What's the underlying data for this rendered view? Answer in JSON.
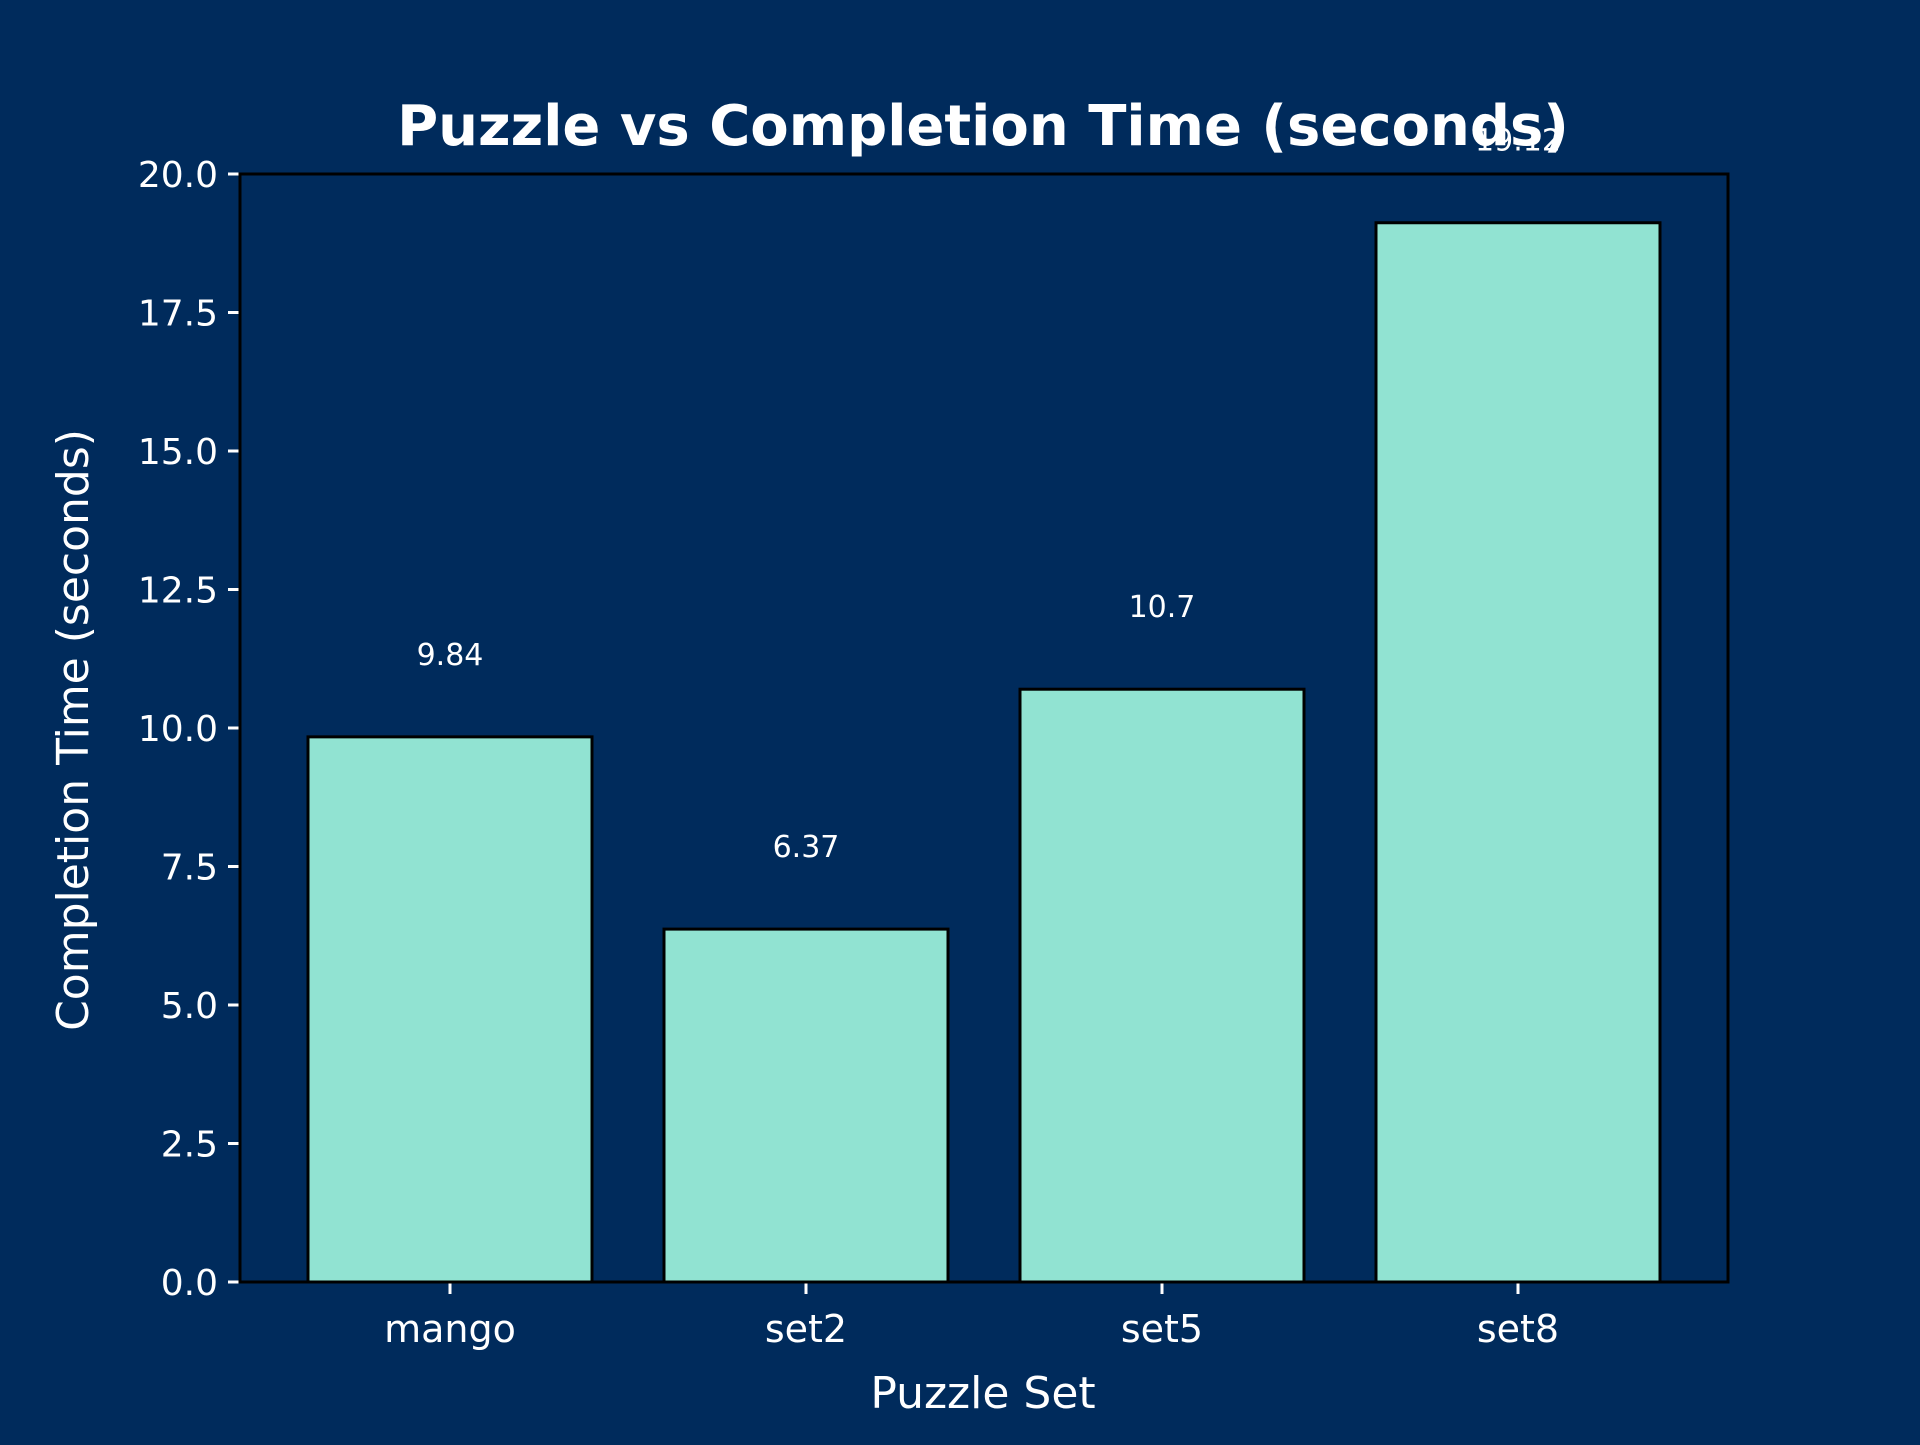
{
  "chart_data": {
    "type": "bar",
    "title": "Puzzle vs Completion Time (seconds)",
    "xlabel": "Puzzle Set",
    "ylabel": "Completion Time (seconds)",
    "categories": [
      "mango",
      "set2",
      "set5",
      "set8"
    ],
    "values": [
      9.84,
      6.37,
      10.7,
      19.12
    ],
    "value_labels": [
      "9.84",
      "6.37",
      "10.7",
      "19.12"
    ],
    "ylim": [
      0,
      20
    ],
    "yticks": [
      "0.0",
      "2.5",
      "5.0",
      "7.5",
      "10.0",
      "12.5",
      "15.0",
      "17.5",
      "20.0"
    ],
    "grid": false,
    "legend": "none"
  },
  "colors": {
    "background": "#002b5c",
    "bar_fill": "#91e3d2",
    "bar_edge": "#000000",
    "text": "#ffffff",
    "axes": "#000000",
    "ticks": "#ffffff"
  }
}
